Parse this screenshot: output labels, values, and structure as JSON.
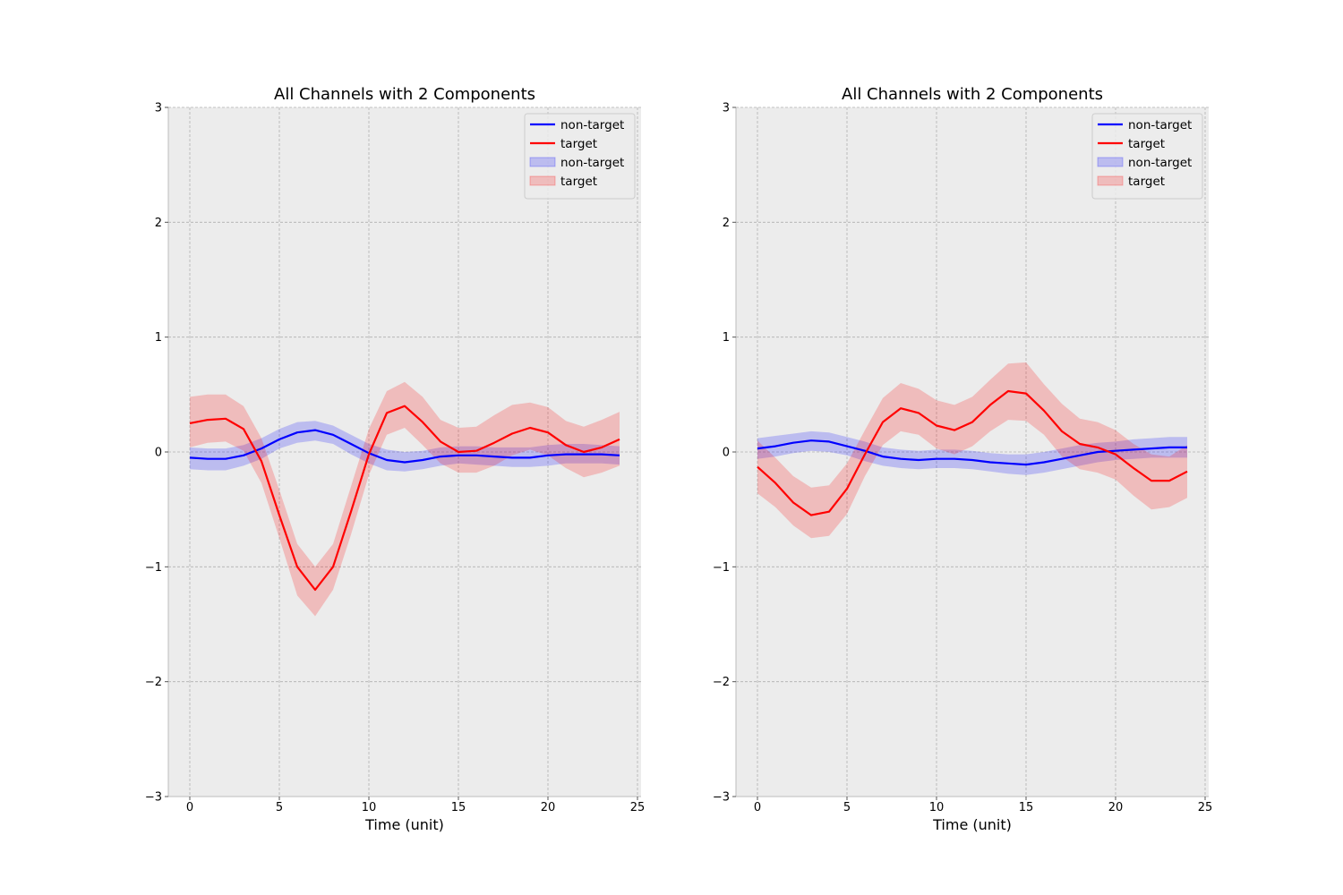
{
  "chart_data": [
    {
      "type": "line",
      "title": "All Channels with 2 Components",
      "xlabel": "Time (unit)",
      "ylabel": "",
      "xlim": [
        -1.2,
        25.2
      ],
      "ylim": [
        -3,
        3
      ],
      "xticks": [
        0,
        5,
        10,
        15,
        20,
        25
      ],
      "yticks": [
        -3,
        -2,
        -1,
        0,
        1,
        2,
        3
      ],
      "grid": true,
      "legend_position": "top-right",
      "x": [
        0,
        1,
        2,
        3,
        4,
        5,
        6,
        7,
        8,
        9,
        10,
        11,
        12,
        13,
        14,
        15,
        16,
        17,
        18,
        19,
        20,
        21,
        22,
        23,
        24
      ],
      "series": [
        {
          "name": "non-target",
          "color": "#0000ff",
          "values": [
            -0.05,
            -0.06,
            -0.06,
            -0.03,
            0.03,
            0.11,
            0.17,
            0.19,
            0.15,
            0.07,
            -0.01,
            -0.07,
            -0.09,
            -0.07,
            -0.04,
            -0.03,
            -0.03,
            -0.04,
            -0.05,
            -0.05,
            -0.03,
            -0.02,
            -0.02,
            -0.02,
            -0.03
          ],
          "band_lower": [
            -0.15,
            -0.16,
            -0.16,
            -0.12,
            -0.06,
            0.03,
            0.08,
            0.1,
            0.07,
            -0.02,
            -0.1,
            -0.16,
            -0.17,
            -0.15,
            -0.12,
            -0.1,
            -0.11,
            -0.12,
            -0.13,
            -0.13,
            -0.12,
            -0.1,
            -0.1,
            -0.1,
            -0.11
          ],
          "band_upper": [
            0.04,
            0.03,
            0.03,
            0.06,
            0.12,
            0.2,
            0.26,
            0.27,
            0.23,
            0.15,
            0.07,
            0.02,
            0.0,
            0.01,
            0.04,
            0.05,
            0.05,
            0.04,
            0.04,
            0.04,
            0.06,
            0.07,
            0.07,
            0.06,
            0.05
          ]
        },
        {
          "name": "target",
          "color": "#ff0000",
          "values": [
            0.25,
            0.28,
            0.29,
            0.2,
            -0.08,
            -0.55,
            -1.0,
            -1.2,
            -1.0,
            -0.52,
            -0.02,
            0.34,
            0.4,
            0.26,
            0.09,
            0.0,
            0.01,
            0.08,
            0.16,
            0.21,
            0.17,
            0.06,
            0.0,
            0.04,
            0.11
          ],
          "band_lower": [
            0.04,
            0.08,
            0.09,
            0.01,
            -0.27,
            -0.75,
            -1.25,
            -1.43,
            -1.2,
            -0.72,
            -0.2,
            0.15,
            0.21,
            0.06,
            -0.1,
            -0.18,
            -0.18,
            -0.12,
            -0.03,
            0.02,
            -0.03,
            -0.14,
            -0.22,
            -0.18,
            -0.12
          ],
          "band_upper": [
            0.48,
            0.5,
            0.5,
            0.4,
            0.12,
            -0.33,
            -0.8,
            -1.0,
            -0.8,
            -0.3,
            0.2,
            0.53,
            0.61,
            0.48,
            0.28,
            0.21,
            0.22,
            0.32,
            0.41,
            0.43,
            0.39,
            0.27,
            0.22,
            0.28,
            0.35
          ]
        }
      ],
      "legend_entries": [
        {
          "label": "non-target",
          "kind": "line",
          "color": "#0000ff"
        },
        {
          "label": "target",
          "kind": "line",
          "color": "#ff0000"
        },
        {
          "label": "non-target",
          "kind": "band",
          "color": "#0000ff"
        },
        {
          "label": "target",
          "kind": "band",
          "color": "#ff0000"
        }
      ]
    },
    {
      "type": "line",
      "title": "All Channels with 2 Components",
      "xlabel": "Time (unit)",
      "ylabel": "",
      "xlim": [
        -1.2,
        25.2
      ],
      "ylim": [
        -3,
        3
      ],
      "xticks": [
        0,
        5,
        10,
        15,
        20,
        25
      ],
      "yticks": [
        -3,
        -2,
        -1,
        0,
        1,
        2,
        3
      ],
      "grid": true,
      "legend_position": "top-right",
      "x": [
        0,
        1,
        2,
        3,
        4,
        5,
        6,
        7,
        8,
        9,
        10,
        11,
        12,
        13,
        14,
        15,
        16,
        17,
        18,
        19,
        20,
        21,
        22,
        23,
        24
      ],
      "series": [
        {
          "name": "non-target",
          "color": "#0000ff",
          "values": [
            0.03,
            0.05,
            0.08,
            0.1,
            0.09,
            0.05,
            0.01,
            -0.04,
            -0.06,
            -0.07,
            -0.06,
            -0.06,
            -0.07,
            -0.09,
            -0.1,
            -0.11,
            -0.09,
            -0.06,
            -0.03,
            0.0,
            0.01,
            0.02,
            0.03,
            0.04,
            0.04
          ],
          "band_lower": [
            -0.06,
            -0.04,
            -0.01,
            0.01,
            0.0,
            -0.03,
            -0.08,
            -0.12,
            -0.14,
            -0.15,
            -0.14,
            -0.14,
            -0.15,
            -0.17,
            -0.19,
            -0.2,
            -0.18,
            -0.15,
            -0.12,
            -0.09,
            -0.07,
            -0.06,
            -0.05,
            -0.05,
            -0.05
          ],
          "band_upper": [
            0.12,
            0.14,
            0.16,
            0.18,
            0.17,
            0.13,
            0.09,
            0.04,
            0.02,
            0.01,
            0.02,
            0.02,
            0.01,
            -0.01,
            -0.02,
            -0.02,
            0.0,
            0.03,
            0.06,
            0.08,
            0.09,
            0.11,
            0.12,
            0.13,
            0.13
          ]
        },
        {
          "name": "target",
          "color": "#ff0000",
          "values": [
            -0.13,
            -0.27,
            -0.44,
            -0.55,
            -0.52,
            -0.32,
            -0.02,
            0.26,
            0.38,
            0.34,
            0.23,
            0.19,
            0.26,
            0.41,
            0.53,
            0.51,
            0.36,
            0.18,
            0.07,
            0.04,
            -0.02,
            -0.14,
            -0.25,
            -0.25,
            -0.17
          ],
          "band_lower": [
            -0.36,
            -0.48,
            -0.64,
            -0.75,
            -0.73,
            -0.54,
            -0.21,
            0.06,
            0.18,
            0.15,
            0.03,
            -0.02,
            0.05,
            0.18,
            0.28,
            0.27,
            0.15,
            -0.04,
            -0.15,
            -0.18,
            -0.24,
            -0.38,
            -0.5,
            -0.48,
            -0.4
          ],
          "band_upper": [
            0.1,
            -0.05,
            -0.21,
            -0.31,
            -0.29,
            -0.1,
            0.19,
            0.47,
            0.6,
            0.55,
            0.45,
            0.41,
            0.48,
            0.63,
            0.77,
            0.78,
            0.59,
            0.42,
            0.29,
            0.26,
            0.19,
            0.07,
            -0.02,
            -0.04,
            0.06
          ]
        }
      ],
      "legend_entries": [
        {
          "label": "non-target",
          "kind": "line",
          "color": "#0000ff"
        },
        {
          "label": "target",
          "kind": "line",
          "color": "#ff0000"
        },
        {
          "label": "non-target",
          "kind": "band",
          "color": "#0000ff"
        },
        {
          "label": "target",
          "kind": "band",
          "color": "#ff0000"
        }
      ]
    }
  ]
}
